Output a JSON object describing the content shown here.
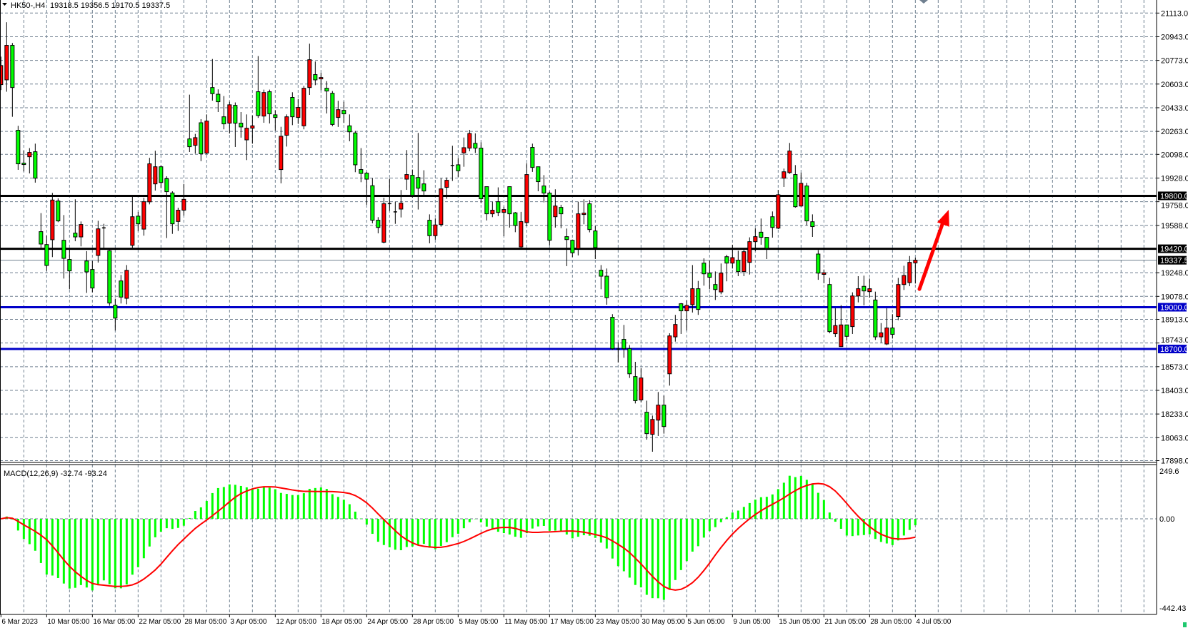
{
  "header": {
    "symbol_timeframe": "HK50-,H4",
    "ohlc_readout": "19318.5 19356.5 19170.5 19337.5"
  },
  "indicator": {
    "label": "MACD(12,26,9) -32.74 -93.24",
    "scale_top": "249.6",
    "scale_zero": "0.00",
    "scale_bottom": "-442.43"
  },
  "colors": {
    "background": "#ffffff",
    "grid": "#708090",
    "bull_candle": "#ff0000",
    "bear_candle": "#00ff00",
    "candle_outline": "#000000",
    "resistance_line": "#000000",
    "support_line": "#0000c8",
    "macd_histogram": "#00ff00",
    "macd_signal": "#ff0000",
    "arrow": "#ff0000",
    "current_price_line": "#708090"
  },
  "chart_data": {
    "type": "candlestick",
    "symbol": "HK50-",
    "timeframe": "H4",
    "ylim": [
      17898,
      21113
    ],
    "grid": true,
    "price_ticks": [
      "21113.0",
      "20943.0",
      "20773.0",
      "20603.0",
      "20433.0",
      "20263.0",
      "20098.0",
      "19928.0",
      "19758.0",
      "19588.0",
      "19248.0",
      "19078.0",
      "18913.0",
      "18743.0",
      "18573.0",
      "18403.0",
      "18233.0",
      "18063.0",
      "17898.0"
    ],
    "time_labels": [
      "6 Mar 2023",
      "10 Mar 05:00",
      "16 Mar 05:00",
      "22 Mar 05:00",
      "28 Mar 05:00",
      "3 Apr 05:00",
      "12 Apr 05:00",
      "18 Apr 05:00",
      "24 Apr 05:00",
      "28 Apr 05:00",
      "5 May 05:00",
      "11 May 05:00",
      "17 May 05:00",
      "23 May 05:00",
      "30 May 05:00",
      "5 Jun 05:00",
      "9 Jun 05:00",
      "15 Jun 05:00",
      "21 Jun 05:00",
      "28 Jun 05:00",
      "4 Jul 05:00"
    ],
    "horizontal_levels": [
      {
        "price": 19800.0,
        "label": "19800.0",
        "kind": "resistance"
      },
      {
        "price": 19420.0,
        "label": "19420.0",
        "kind": "resistance"
      },
      {
        "price": 19000.0,
        "label": "19000.0",
        "kind": "support"
      },
      {
        "price": 18700.0,
        "label": "18700.0",
        "kind": "support"
      }
    ],
    "current_price": {
      "price": 19337.5,
      "label": "19337.5"
    },
    "annotation": {
      "type": "arrow",
      "direction": "up",
      "from_price": 19130,
      "to_price": 19700
    },
    "macd": {
      "fast": 12,
      "slow": 26,
      "signal": 9,
      "main_last": -32.74,
      "signal_last": -93.24,
      "ylim": [
        -442.43,
        249.6
      ]
    },
    "ohlc": [
      [
        20599,
        20800,
        20560,
        20736
      ],
      [
        20633,
        21047,
        20548,
        20881
      ],
      [
        20881,
        20898,
        20368,
        20578
      ],
      [
        20271,
        20303,
        19987,
        20030
      ],
      [
        20035,
        20125,
        19975,
        20025
      ],
      [
        20081,
        20143,
        19961,
        20112
      ],
      [
        20117,
        20175,
        19895,
        19927
      ],
      [
        19543,
        19676,
        19428,
        19454
      ],
      [
        19450,
        19514,
        19261,
        19300
      ],
      [
        19485,
        19821,
        19360,
        19770
      ],
      [
        19763,
        19782,
        19611,
        19620
      ],
      [
        19481,
        19662,
        19206,
        19351
      ],
      [
        19343,
        19420,
        19129,
        19261
      ],
      [
        19532,
        19775,
        19474,
        19505
      ],
      [
        19505,
        19616,
        19437,
        19594
      ],
      [
        19332,
        19403,
        19103,
        19254
      ],
      [
        19271,
        19331,
        19107,
        19138
      ],
      [
        19372,
        19621,
        19321,
        19563
      ],
      [
        19570,
        19599,
        19420,
        19568
      ],
      [
        19406,
        19411,
        19010,
        19030
      ],
      [
        19015,
        19061,
        18833,
        18922
      ],
      [
        19189,
        19232,
        19027,
        19073
      ],
      [
        19064,
        19303,
        19021,
        19265
      ],
      [
        19445,
        19796,
        19428,
        19650
      ],
      [
        19654,
        19685,
        19548,
        19599
      ],
      [
        19561,
        19787,
        19514,
        19758
      ],
      [
        19757,
        20073,
        19739,
        20030
      ],
      [
        19886,
        20124,
        19838,
        20009
      ],
      [
        20009,
        20018,
        19855,
        19896
      ],
      [
        19924,
        19941,
        19497,
        19830
      ],
      [
        19821,
        19833,
        19527,
        19599
      ],
      [
        19616,
        19715,
        19548,
        19697
      ],
      [
        19697,
        19886,
        19659,
        19775
      ],
      [
        20209,
        20527,
        20115,
        20153
      ],
      [
        20163,
        20245,
        20103,
        20218
      ],
      [
        20325,
        20351,
        20049,
        20102
      ],
      [
        20107,
        20385,
        20098,
        20337
      ],
      [
        20578,
        20783,
        20484,
        20534
      ],
      [
        20530,
        20565,
        20402,
        20476
      ],
      [
        20368,
        20517,
        20278,
        20317
      ],
      [
        20322,
        20476,
        20248,
        20454
      ],
      [
        20450,
        20471,
        20151,
        20322
      ],
      [
        20322,
        20402,
        20218,
        20295
      ],
      [
        20202,
        20385,
        20057,
        20286
      ],
      [
        20286,
        20377,
        20175,
        20303
      ],
      [
        20548,
        20804,
        20360,
        20377
      ],
      [
        20373,
        20563,
        20325,
        20542
      ],
      [
        20548,
        20563,
        20320,
        20389
      ],
      [
        20382,
        20414,
        20269,
        20363
      ],
      [
        19989,
        20296,
        19890,
        20228
      ],
      [
        20235,
        20385,
        20154,
        20368
      ],
      [
        20507,
        20544,
        20308,
        20368
      ],
      [
        20363,
        20496,
        20317,
        20435
      ],
      [
        20303,
        20590,
        20278,
        20573
      ],
      [
        20578,
        20893,
        20525,
        20778
      ],
      [
        20671,
        20765,
        20595,
        20633
      ],
      [
        20640,
        20684,
        20559,
        20650
      ],
      [
        20573,
        20624,
        20392,
        20553
      ],
      [
        20537,
        20553,
        20300,
        20313
      ],
      [
        20363,
        20483,
        20295,
        20419
      ],
      [
        20414,
        20476,
        20324,
        20389
      ],
      [
        20303,
        20385,
        20192,
        20260
      ],
      [
        20252,
        20266,
        19970,
        20023
      ],
      [
        19989,
        20143,
        19898,
        19961
      ],
      [
        19963,
        19972,
        19736,
        19920
      ],
      [
        19873,
        19927,
        19603,
        19625
      ],
      [
        19625,
        19647,
        19531,
        19573
      ],
      [
        19467,
        19787,
        19459,
        19744
      ],
      [
        19744,
        19924,
        19693,
        19742
      ],
      [
        19685,
        19758,
        19599,
        19683
      ],
      [
        19705,
        19842,
        19645,
        19748
      ],
      [
        19920,
        20129,
        19843,
        19953
      ],
      [
        19948,
        19989,
        19787,
        19804
      ],
      [
        19932,
        20252,
        19702,
        19855
      ],
      [
        19886,
        19984,
        19796,
        19835
      ],
      [
        19625,
        19667,
        19459,
        19514
      ],
      [
        19514,
        19638,
        19485,
        19591
      ],
      [
        19594,
        19927,
        19579,
        19850
      ],
      [
        19861,
        19932,
        19779,
        19912
      ],
      [
        20018,
        20160,
        19907,
        20018
      ],
      [
        20023,
        20072,
        19936,
        19980
      ],
      [
        20109,
        20219,
        20009,
        20146
      ],
      [
        20143,
        20274,
        20120,
        20248
      ],
      [
        20177,
        20249,
        20108,
        20143
      ],
      [
        20143,
        20184,
        19748,
        19779
      ],
      [
        19866,
        19866,
        19623,
        19671
      ],
      [
        19671,
        19758,
        19647,
        19697
      ],
      [
        19758,
        19861,
        19654,
        19681
      ],
      [
        19681,
        19722,
        19510,
        19702
      ],
      [
        19866,
        19866,
        19572,
        19671
      ],
      [
        19678,
        19684,
        19539,
        19587
      ],
      [
        19433,
        19685,
        19428,
        19615
      ],
      [
        19608,
        20035,
        19582,
        19953
      ],
      [
        20148,
        20175,
        19972,
        20004
      ],
      [
        20009,
        20009,
        19833,
        19902
      ],
      [
        19871,
        19949,
        19753,
        19820
      ],
      [
        19820,
        19830,
        19445,
        19481
      ],
      [
        19650,
        19847,
        19572,
        19727
      ],
      [
        19717,
        19736,
        19568,
        19671
      ],
      [
        19507,
        19565,
        19295,
        19486
      ],
      [
        19481,
        19486,
        19360,
        19391
      ],
      [
        19420,
        19758,
        19372,
        19671
      ],
      [
        19666,
        19775,
        19596,
        19676
      ],
      [
        19743,
        19770,
        19538,
        19558
      ],
      [
        19548,
        19582,
        19346,
        19428
      ],
      [
        19266,
        19303,
        19129,
        19223
      ],
      [
        19223,
        19278,
        19018,
        19069
      ],
      [
        18928,
        18950,
        18693,
        18702
      ],
      [
        18700,
        18748,
        18603,
        18697
      ],
      [
        18769,
        18873,
        18637,
        18702
      ],
      [
        18702,
        18728,
        18492,
        18522
      ],
      [
        18502,
        18608,
        18309,
        18329
      ],
      [
        18334,
        18562,
        18317,
        18492
      ],
      [
        18246,
        18329,
        18049,
        18092
      ],
      [
        18087,
        18222,
        17962,
        18194
      ],
      [
        18189,
        18391,
        18075,
        18297
      ],
      [
        18297,
        18365,
        18092,
        18143
      ],
      [
        18522,
        18813,
        18437,
        18794
      ],
      [
        18787,
        18945,
        18753,
        18876
      ],
      [
        19025,
        19030,
        18808,
        18974
      ],
      [
        18974,
        19049,
        18833,
        19013
      ],
      [
        19018,
        19303,
        18962,
        19133
      ],
      [
        19133,
        19189,
        18945,
        18984
      ],
      [
        19317,
        19351,
        19155,
        19240
      ],
      [
        19245,
        19334,
        19129,
        19215
      ],
      [
        19163,
        19257,
        19052,
        19127
      ],
      [
        19110,
        19314,
        19093,
        19245
      ],
      [
        19363,
        19377,
        19186,
        19317
      ],
      [
        19317,
        19449,
        19278,
        19356
      ],
      [
        19338,
        19406,
        19223,
        19256
      ],
      [
        19256,
        19415,
        19223,
        19399
      ],
      [
        19322,
        19502,
        19235,
        19471
      ],
      [
        19471,
        19568,
        19403,
        19507
      ],
      [
        19539,
        19637,
        19449,
        19502
      ],
      [
        19502,
        19502,
        19346,
        19423
      ],
      [
        19650,
        19688,
        19500,
        19573
      ],
      [
        19568,
        19842,
        19561,
        19808
      ],
      [
        19927,
        19996,
        19864,
        19973
      ],
      [
        19967,
        20180,
        19958,
        20122
      ],
      [
        19953,
        20021,
        19715,
        19722
      ],
      [
        19727,
        19967,
        19722,
        19890
      ],
      [
        19871,
        19893,
        19587,
        19620
      ],
      [
        19614,
        19667,
        19505,
        19579
      ],
      [
        19382,
        19411,
        19197,
        19245
      ],
      [
        19236,
        19271,
        19172,
        19247
      ],
      [
        19163,
        19211,
        18813,
        18825
      ],
      [
        18810,
        18992,
        18787,
        18868
      ],
      [
        18717,
        19015,
        18717,
        18873
      ],
      [
        18873,
        18873,
        18762,
        18791
      ],
      [
        18861,
        19107,
        18808,
        19081
      ],
      [
        19081,
        19223,
        19035,
        19133
      ],
      [
        19150,
        19227,
        19013,
        19117
      ],
      [
        19112,
        19206,
        19069,
        19133
      ],
      [
        19052,
        19112,
        18765,
        18787
      ],
      [
        18787,
        18886,
        18745,
        18816
      ],
      [
        18736,
        18992,
        18728,
        18851
      ],
      [
        18851,
        18950,
        18775,
        18805
      ],
      [
        18933,
        19211,
        18907,
        19163
      ],
      [
        19163,
        19298,
        19124,
        19228
      ],
      [
        19177,
        19368,
        19151,
        19322
      ],
      [
        19318.5,
        19356.5,
        19170.5,
        19337.5
      ]
    ]
  }
}
